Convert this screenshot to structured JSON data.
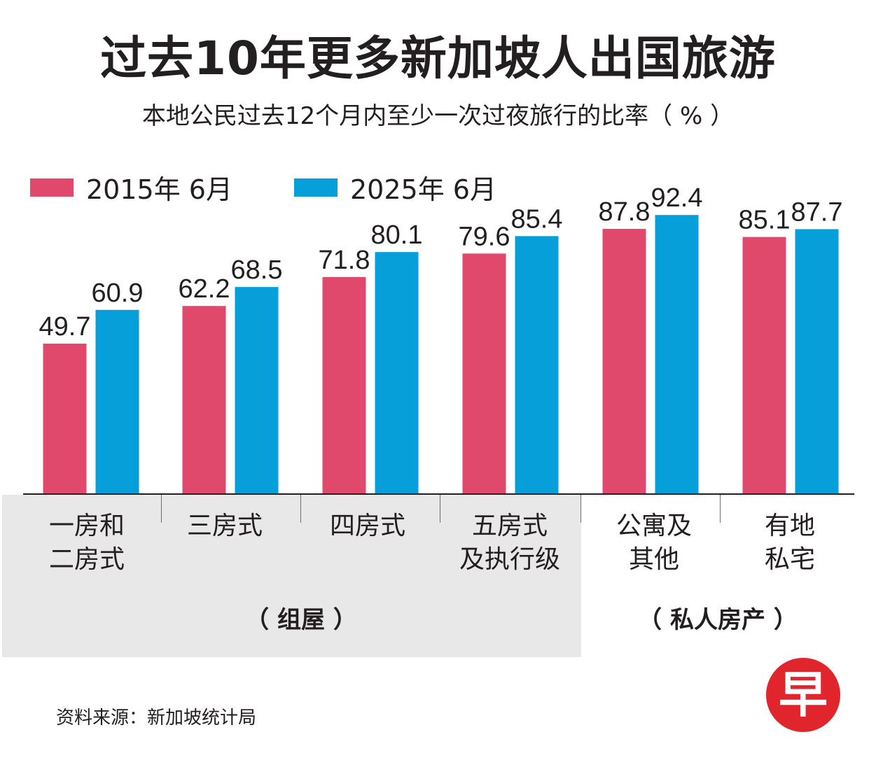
{
  "title": "过去10年更多新加坡人出国旅游",
  "subtitle": "本地公民过去12个月内至少一次过夜旅行的比率（ % ）",
  "source": "资料来源：新加坡统计局",
  "logo_text": "早",
  "colors": {
    "series_2015": "#e0496b",
    "series_2025": "#069fd9",
    "panel": "#e8e8e9",
    "logo": "#e1252c"
  },
  "groups": {
    "hdb": "（ 组屋 ）",
    "private": "（ 私人房产 ）"
  },
  "category_lines": [
    [
      "一房和",
      "二房式"
    ],
    [
      "三房式",
      ""
    ],
    [
      "四房式",
      ""
    ],
    [
      "五房式",
      "及执行级"
    ],
    [
      "公寓及",
      "其他"
    ],
    [
      "有地",
      "私宅"
    ]
  ],
  "chart_data": {
    "type": "bar",
    "title": "过去10年更多新加坡人出国旅游",
    "subtitle": "本地公民过去12个月内至少一次过夜旅行的比率（ % ）",
    "categories": [
      "一房和二房式",
      "三房式",
      "四房式",
      "五房式及执行级",
      "公寓及其他",
      "有地私宅"
    ],
    "series": [
      {
        "name": "2015年 6月",
        "values": [
          49.7,
          62.2,
          71.8,
          79.6,
          87.8,
          85.1
        ]
      },
      {
        "name": "2025年 6月",
        "values": [
          60.9,
          68.5,
          80.1,
          85.4,
          92.4,
          87.7
        ]
      }
    ],
    "ylabel": "%",
    "ylim": [
      0,
      100
    ],
    "grid": false,
    "legend": "top-left"
  }
}
